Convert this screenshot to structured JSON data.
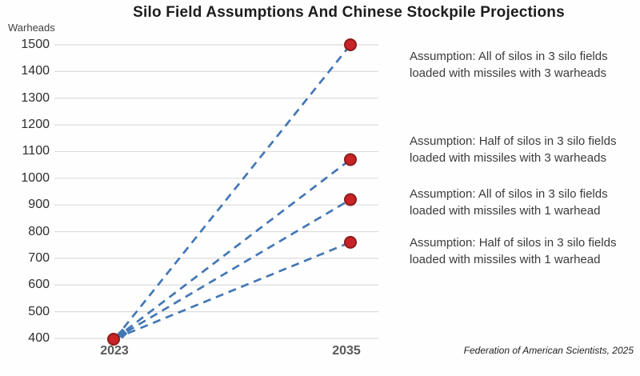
{
  "title": "Silo Field Assumptions And Chinese Stockpile Projections",
  "source": "Federation of American Scientists, 2025",
  "chart_data": {
    "type": "line",
    "title": "Silo Field Assumptions And Chinese Stockpile Projections",
    "ylabel": "Warheads",
    "xlabel": "",
    "x": [
      2023,
      2035
    ],
    "x_labels": [
      "2023",
      "2035"
    ],
    "ylim": [
      400,
      1500
    ],
    "yticks": [
      400,
      500,
      600,
      700,
      800,
      900,
      1000,
      1100,
      1200,
      1300,
      1400,
      1500
    ],
    "grid": true,
    "legend_position": "none",
    "line_style": "dashed",
    "line_color": "#4377b5",
    "marker_color": "#c92327",
    "marker_edge_color": "#8c1b1b",
    "series": [
      {
        "name": "All of silos in 3 silo fields, 3 warheads each",
        "values": [
          400,
          1500
        ]
      },
      {
        "name": "Half of silos in 3 silo fields, 3 warheads each",
        "values": [
          400,
          1070
        ]
      },
      {
        "name": "All of silos in 3 silo fields, 1 warhead each",
        "values": [
          400,
          920
        ]
      },
      {
        "name": "Half of silos in 3 silo fields, 1 warhead each",
        "values": [
          400,
          760
        ]
      }
    ]
  },
  "annotations": [
    {
      "lines": [
        "Assumption: All of silos in 3 silo fields",
        "loaded with missiles with 3 warheads"
      ]
    },
    {
      "lines": [
        "Assumption: Half of silos in 3 silo fields",
        "loaded with missiles with 3 warheads"
      ]
    },
    {
      "lines": [
        "Assumption: All of silos in 3 silo fields",
        "loaded with missiles with 1 warhead"
      ]
    },
    {
      "lines": [
        "Assumption: Half of silos in 3 silo fields",
        "loaded with missiles with 1 warhead"
      ]
    }
  ]
}
